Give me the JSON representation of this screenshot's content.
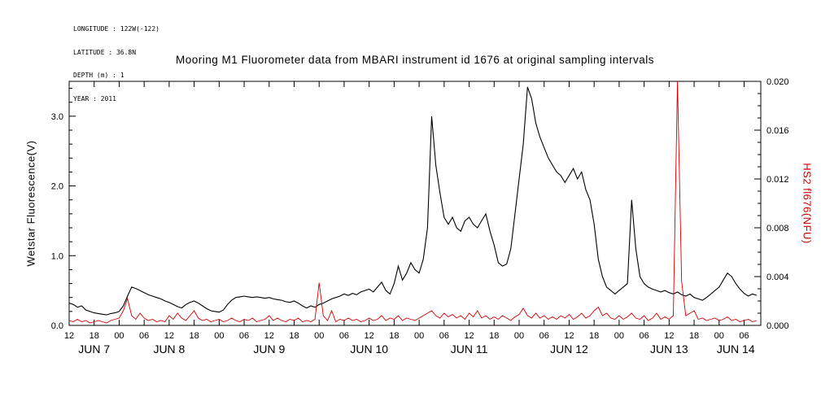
{
  "header": {
    "lines": [
      "LONGITUDE : 122W(-122)",
      "LATITUDE : 36.8N",
      "DEPTH (m) : 1",
      "YEAR : 2011"
    ]
  },
  "chart_data": {
    "type": "line",
    "title": "Mooring M1 Fluorometer data from MBARI instrument id 1676 at original sampling intervals",
    "grid": false,
    "legend": "none",
    "x_axis": {
      "unit": "hours since 2011 JUN 7 12:00",
      "min": 0,
      "max": 166,
      "major_tick_step_hours": 6,
      "tick_labels": [
        "12",
        "18",
        "00",
        "06",
        "12",
        "18",
        "00",
        "06",
        "12",
        "18",
        "00",
        "06",
        "12",
        "18",
        "00",
        "06",
        "12",
        "18",
        "00",
        "06",
        "12",
        "18",
        "00",
        "06",
        "12",
        "18",
        "00",
        "06"
      ],
      "day_labels": [
        {
          "label": "JUN 7",
          "center_hour": 6
        },
        {
          "label": "JUN 8",
          "center_hour": 24
        },
        {
          "label": "JUN 9",
          "center_hour": 48
        },
        {
          "label": "JUN 10",
          "center_hour": 72
        },
        {
          "label": "JUN 11",
          "center_hour": 96
        },
        {
          "label": "JUN 12",
          "center_hour": 120
        },
        {
          "label": "JUN 13",
          "center_hour": 144
        },
        {
          "label": "JUN 14",
          "center_hour": 160
        }
      ]
    },
    "y_left": {
      "label": "Wetstar Fluorescence(V)",
      "min": 0,
      "max": 3.5,
      "major_ticks": [
        0,
        1,
        2,
        3
      ],
      "tick_labels": [
        "0.0",
        "1.0",
        "2.0",
        "3.0"
      ],
      "minor_step": 0.2,
      "color": "#000000"
    },
    "y_right": {
      "label": "HS2 fl676(NFU)",
      "min": 0,
      "max": 0.02,
      "major_ticks": [
        0,
        0.004,
        0.008,
        0.012,
        0.016,
        0.02
      ],
      "tick_labels": [
        "0.000",
        "0.004",
        "0.008",
        "0.012",
        "0.016",
        "0.020"
      ],
      "minor_step": 0.001,
      "color": "#cc0000"
    },
    "series": [
      {
        "name": "Wetstar Fluorescence(V)",
        "axis": "left",
        "color": "#000000",
        "start_hour": 0,
        "step_hours": 1,
        "values": [
          0.32,
          0.3,
          0.26,
          0.28,
          0.22,
          0.2,
          0.18,
          0.17,
          0.16,
          0.15,
          0.17,
          0.18,
          0.2,
          0.28,
          0.42,
          0.55,
          0.53,
          0.5,
          0.47,
          0.44,
          0.42,
          0.4,
          0.38,
          0.35,
          0.33,
          0.3,
          0.27,
          0.25,
          0.3,
          0.33,
          0.35,
          0.32,
          0.28,
          0.24,
          0.21,
          0.2,
          0.19,
          0.22,
          0.3,
          0.36,
          0.4,
          0.41,
          0.42,
          0.41,
          0.4,
          0.41,
          0.4,
          0.39,
          0.4,
          0.38,
          0.37,
          0.36,
          0.34,
          0.33,
          0.35,
          0.32,
          0.28,
          0.25,
          0.28,
          0.26,
          0.3,
          0.32,
          0.35,
          0.38,
          0.4,
          0.42,
          0.45,
          0.43,
          0.46,
          0.44,
          0.48,
          0.5,
          0.52,
          0.48,
          0.55,
          0.62,
          0.5,
          0.45,
          0.6,
          0.85,
          0.65,
          0.75,
          0.9,
          0.8,
          0.75,
          0.95,
          1.4,
          3.0,
          2.3,
          1.9,
          1.55,
          1.45,
          1.55,
          1.4,
          1.35,
          1.5,
          1.55,
          1.45,
          1.4,
          1.5,
          1.6,
          1.35,
          1.15,
          0.9,
          0.85,
          0.88,
          1.1,
          1.6,
          2.1,
          2.6,
          3.42,
          3.25,
          2.9,
          2.7,
          2.55,
          2.4,
          2.3,
          2.2,
          2.15,
          2.05,
          2.15,
          2.25,
          2.1,
          2.2,
          1.95,
          1.8,
          1.45,
          0.95,
          0.7,
          0.55,
          0.5,
          0.45,
          0.5,
          0.55,
          0.6,
          1.8,
          1.1,
          0.7,
          0.6,
          0.55,
          0.52,
          0.5,
          0.48,
          0.5,
          0.47,
          0.45,
          0.48,
          0.44,
          0.42,
          0.45,
          0.4,
          0.38,
          0.36,
          0.4,
          0.45,
          0.5,
          0.55,
          0.65,
          0.75,
          0.7,
          0.6,
          0.52,
          0.46,
          0.42,
          0.45,
          0.43
        ]
      },
      {
        "name": "HS2 fl676(NFU)",
        "axis": "right",
        "color": "#cc0000",
        "start_hour": 0,
        "step_hours": 1,
        "values": [
          0.0004,
          0.0003,
          0.0005,
          0.0003,
          0.0004,
          0.0002,
          0.0003,
          0.0004,
          0.0003,
          0.0002,
          0.0004,
          0.0005,
          0.0006,
          0.0012,
          0.0022,
          0.0008,
          0.0005,
          0.001,
          0.0006,
          0.0004,
          0.0005,
          0.0003,
          0.0004,
          0.0003,
          0.0008,
          0.0005,
          0.001,
          0.0006,
          0.0004,
          0.0008,
          0.0012,
          0.0006,
          0.0004,
          0.0005,
          0.0003,
          0.0004,
          0.0005,
          0.0003,
          0.0004,
          0.0006,
          0.0004,
          0.0003,
          0.0005,
          0.0004,
          0.0006,
          0.0003,
          0.0004,
          0.0005,
          0.0008,
          0.0004,
          0.0006,
          0.0004,
          0.0003,
          0.0005,
          0.0004,
          0.0006,
          0.0003,
          0.0004,
          0.0003,
          0.0005,
          0.0035,
          0.0008,
          0.0004,
          0.0012,
          0.0003,
          0.0005,
          0.0004,
          0.0006,
          0.0004,
          0.0005,
          0.0003,
          0.0004,
          0.0006,
          0.0004,
          0.0005,
          0.0008,
          0.0004,
          0.0006,
          0.0005,
          0.0008,
          0.0004,
          0.0006,
          0.0005,
          0.0004,
          0.0006,
          0.0008,
          0.001,
          0.0012,
          0.0008,
          0.0006,
          0.001,
          0.0007,
          0.0009,
          0.0006,
          0.0008,
          0.0005,
          0.001,
          0.0007,
          0.0012,
          0.0006,
          0.0008,
          0.0005,
          0.0007,
          0.0005,
          0.0008,
          0.0006,
          0.0004,
          0.0007,
          0.0009,
          0.0014,
          0.0008,
          0.0006,
          0.001,
          0.0006,
          0.0008,
          0.0005,
          0.0007,
          0.0005,
          0.0008,
          0.0006,
          0.0009,
          0.0005,
          0.0007,
          0.001,
          0.0006,
          0.0008,
          0.0012,
          0.0015,
          0.0008,
          0.001,
          0.0006,
          0.0005,
          0.0008,
          0.0005,
          0.0007,
          0.001,
          0.0006,
          0.0005,
          0.0008,
          0.0004,
          0.0006,
          0.001,
          0.0005,
          0.0007,
          0.0005,
          0.0008,
          0.02,
          0.0036,
          0.0008,
          0.001,
          0.0012,
          0.0005,
          0.0006,
          0.0004,
          0.0005,
          0.0006,
          0.0004,
          0.0005,
          0.0007,
          0.0004,
          0.0005,
          0.0003,
          0.0004,
          0.0005,
          0.0003,
          0.0004
        ]
      }
    ]
  }
}
